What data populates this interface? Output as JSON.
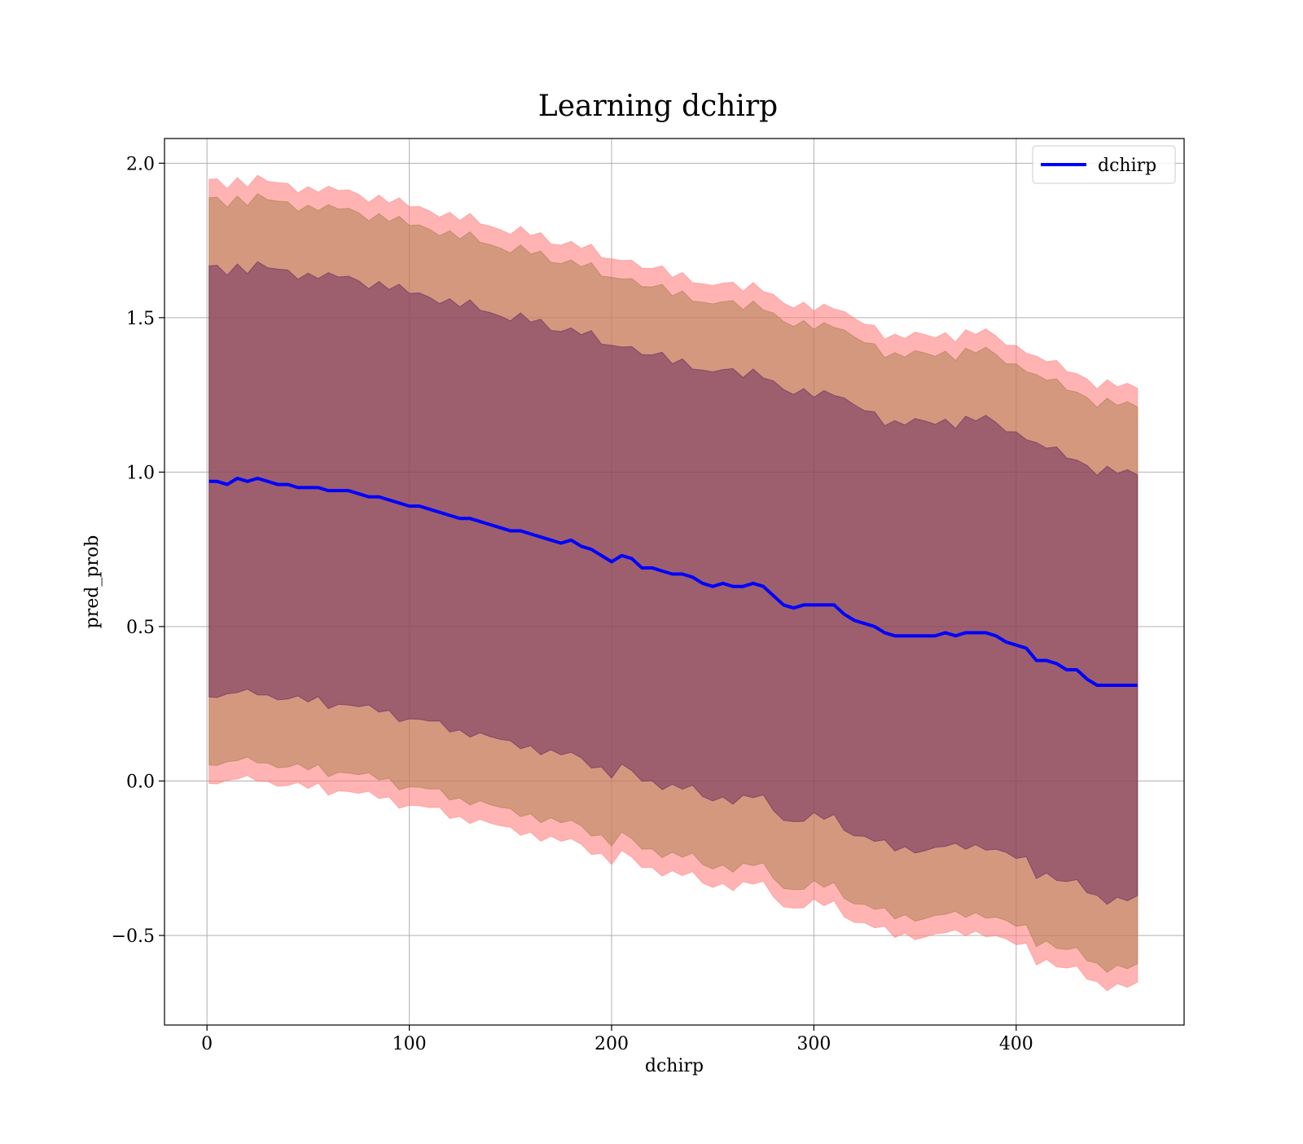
{
  "chart_data": {
    "type": "line",
    "title": "Learning dchirp",
    "xlabel": "dchirp",
    "ylabel": "pred_prob",
    "xlim": [
      -21,
      483
    ],
    "ylim": [
      -0.79,
      2.08
    ],
    "xticks": [
      0,
      100,
      200,
      300,
      400
    ],
    "xtick_labels": [
      "0",
      "100",
      "200",
      "300",
      "400"
    ],
    "yticks": [
      -0.5,
      0.0,
      0.5,
      1.0,
      1.5,
      2.0
    ],
    "ytick_labels": [
      "−0.5",
      "0.0",
      "0.5",
      "1.0",
      "1.5",
      "2.0"
    ],
    "grid": true,
    "legend": {
      "position": "top-right",
      "entries": [
        {
          "label": "dchirp",
          "color": "#0000ff"
        }
      ]
    },
    "series": [
      {
        "name": "dchirp",
        "color": "#0000ff",
        "x": [
          1,
          5,
          10,
          15,
          20,
          25,
          30,
          35,
          40,
          45,
          50,
          55,
          60,
          65,
          70,
          75,
          80,
          85,
          90,
          95,
          100,
          105,
          110,
          115,
          120,
          125,
          130,
          135,
          140,
          145,
          150,
          155,
          160,
          165,
          170,
          175,
          180,
          185,
          190,
          195,
          200,
          205,
          210,
          215,
          220,
          225,
          230,
          235,
          240,
          245,
          250,
          255,
          260,
          265,
          270,
          275,
          280,
          285,
          290,
          295,
          300,
          305,
          310,
          315,
          320,
          325,
          330,
          335,
          340,
          345,
          350,
          355,
          360,
          365,
          370,
          375,
          380,
          385,
          390,
          395,
          400,
          405,
          410,
          415,
          420,
          425,
          430,
          435,
          440,
          445,
          450,
          455,
          460
        ],
        "y": [
          0.97,
          0.97,
          0.96,
          0.98,
          0.97,
          0.98,
          0.97,
          0.96,
          0.96,
          0.95,
          0.95,
          0.95,
          0.94,
          0.94,
          0.94,
          0.93,
          0.92,
          0.92,
          0.91,
          0.9,
          0.89,
          0.89,
          0.88,
          0.87,
          0.86,
          0.85,
          0.85,
          0.84,
          0.83,
          0.82,
          0.81,
          0.81,
          0.8,
          0.79,
          0.78,
          0.77,
          0.78,
          0.76,
          0.75,
          0.73,
          0.71,
          0.73,
          0.72,
          0.69,
          0.69,
          0.68,
          0.67,
          0.67,
          0.66,
          0.64,
          0.63,
          0.64,
          0.63,
          0.63,
          0.64,
          0.63,
          0.6,
          0.57,
          0.56,
          0.57,
          0.57,
          0.57,
          0.57,
          0.54,
          0.52,
          0.51,
          0.5,
          0.48,
          0.47,
          0.47,
          0.47,
          0.47,
          0.47,
          0.48,
          0.47,
          0.48,
          0.48,
          0.48,
          0.47,
          0.45,
          0.44,
          0.43,
          0.39,
          0.39,
          0.38,
          0.36,
          0.36,
          0.33,
          0.31,
          0.31,
          0.31,
          0.31,
          0.31
        ]
      }
    ],
    "bands": [
      {
        "name": "outer",
        "color": "#ff8080",
        "opacity": 0.6,
        "half_width_start": 0.97,
        "half_width_end": 0.97
      },
      {
        "name": "middle",
        "color": "#a07840",
        "opacity": 0.45,
        "half_width_start": 0.91,
        "half_width_end": 0.91
      },
      {
        "name": "inner",
        "color": "#5a1a5a",
        "opacity": 0.45,
        "half_width_start": 0.69,
        "half_width_end": 0.69
      }
    ]
  }
}
